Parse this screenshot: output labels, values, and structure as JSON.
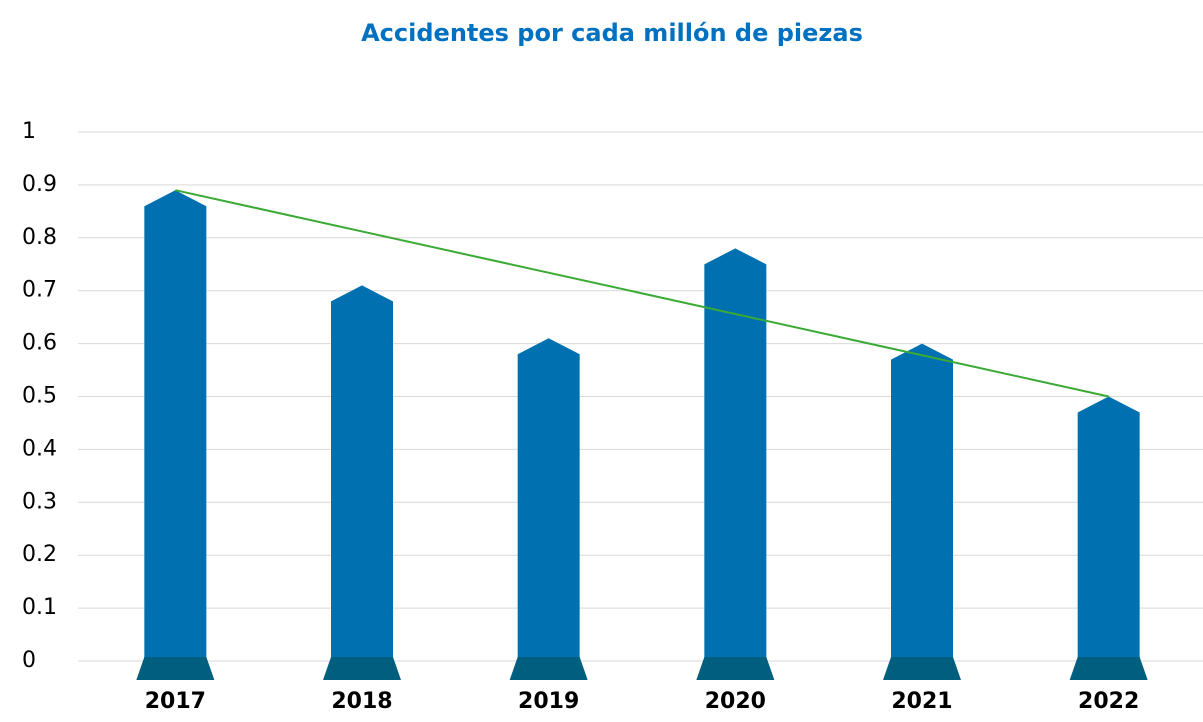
{
  "chart_data": {
    "type": "bar",
    "title": "Accidentes por cada millón de piezas",
    "categories": [
      "2017",
      "2018",
      "2019",
      "2020",
      "2021",
      "2022"
    ],
    "values": [
      0.89,
      0.71,
      0.61,
      0.78,
      0.6,
      0.5
    ],
    "color": "#0070b0",
    "base_color": "#005f7f",
    "trend_line_color": "#3aaa35",
    "ylim": [
      0,
      1
    ],
    "yticks": [
      0,
      0.1,
      0.2,
      0.3,
      0.4,
      0.5,
      0.6,
      0.7,
      0.8,
      0.9,
      1
    ],
    "grid": true
  }
}
